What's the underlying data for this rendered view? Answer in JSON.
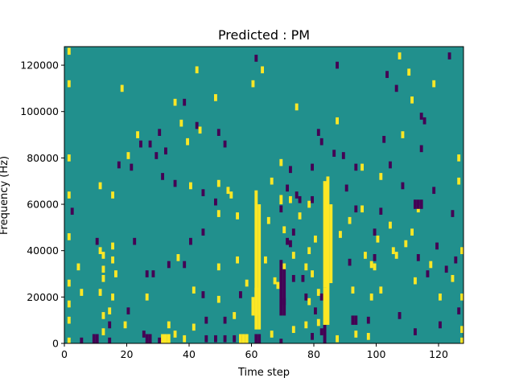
{
  "chart_data": {
    "type": "heatmap",
    "title": "Predicted : PM",
    "xlabel": "Time step",
    "ylabel": "Frequency (Hz)",
    "xlim": [
      0,
      128
    ],
    "ylim": [
      0,
      128000
    ],
    "x_ticks": [
      0,
      20,
      40,
      60,
      80,
      100,
      120
    ],
    "y_ticks": [
      0,
      20000,
      40000,
      60000,
      80000,
      100000,
      120000
    ],
    "n_time_steps": 128,
    "n_freq_bins": 128,
    "grid": false,
    "legend": "none",
    "colormap": {
      "background_value": 0,
      "background_color": "#21908d",
      "high_value": 1,
      "high_color": "#fde725",
      "low_value": -1,
      "low_color": "#440154"
    },
    "cells": [
      [
        1,
        126000,
        1
      ],
      [
        1,
        112000,
        1
      ],
      [
        1,
        80000,
        1
      ],
      [
        1,
        64000,
        1
      ],
      [
        1,
        46000,
        1
      ],
      [
        1,
        26000,
        1
      ],
      [
        1,
        17000,
        1
      ],
      [
        1,
        10000,
        1
      ],
      [
        1,
        1000,
        1
      ],
      [
        2,
        57000,
        -1
      ],
      [
        4,
        33000,
        1
      ],
      [
        5,
        22000,
        1
      ],
      [
        5,
        1000,
        -1
      ],
      [
        10,
        44000,
        -1
      ],
      [
        11,
        68000,
        1
      ],
      [
        11,
        40000,
        1
      ],
      [
        11,
        22000,
        1
      ],
      [
        12,
        38000,
        1
      ],
      [
        12,
        32000,
        1
      ],
      [
        12,
        28000,
        1
      ],
      [
        12,
        12000,
        1
      ],
      [
        12,
        5000,
        1
      ],
      [
        14,
        14000,
        1
      ],
      [
        14,
        8000,
        -1
      ],
      [
        14,
        1000,
        -1
      ],
      [
        15,
        64000,
        1
      ],
      [
        15,
        42000,
        1
      ],
      [
        15,
        36000,
        1
      ],
      [
        15,
        20000,
        1
      ],
      [
        16,
        30000,
        1
      ],
      [
        18,
        110000,
        1
      ],
      [
        17,
        77000,
        -1
      ],
      [
        19,
        8000,
        1
      ],
      [
        20,
        81000,
        1
      ],
      [
        20,
        14000,
        -1
      ],
      [
        21,
        76000,
        -1
      ],
      [
        22,
        44000,
        -1
      ],
      [
        23,
        90000,
        1
      ],
      [
        24,
        86000,
        -1
      ],
      [
        25,
        4000,
        -1
      ],
      [
        26,
        20000,
        1
      ],
      [
        26,
        30000,
        -1
      ],
      [
        27,
        86000,
        -1
      ],
      [
        28,
        30000,
        -1
      ],
      [
        29,
        81000,
        -1
      ],
      [
        30,
        91000,
        -1
      ],
      [
        30,
        1000,
        -1
      ],
      [
        31,
        72000,
        -1
      ],
      [
        32,
        83000,
        -1
      ],
      [
        33,
        34000,
        -1
      ],
      [
        33,
        8000,
        1
      ],
      [
        35,
        104000,
        1
      ],
      [
        35,
        69000,
        -1
      ],
      [
        35,
        4000,
        1
      ],
      [
        36,
        37000,
        1
      ],
      [
        37,
        95000,
        1
      ],
      [
        38,
        104000,
        -1
      ],
      [
        38,
        34000,
        -1
      ],
      [
        38,
        2000,
        1
      ],
      [
        39,
        87000,
        1
      ],
      [
        40,
        68000,
        1
      ],
      [
        40,
        44000,
        -1
      ],
      [
        41,
        23000,
        1
      ],
      [
        41,
        7000,
        1
      ],
      [
        42,
        118000,
        1
      ],
      [
        42,
        94000,
        -1
      ],
      [
        43,
        92000,
        1
      ],
      [
        44,
        65000,
        -1
      ],
      [
        44,
        48000,
        -1
      ],
      [
        44,
        21000,
        -1
      ],
      [
        45,
        10000,
        -1
      ],
      [
        45,
        2000,
        -1
      ],
      [
        48,
        106000,
        1
      ],
      [
        48,
        61000,
        -1
      ],
      [
        48,
        2000,
        -1
      ],
      [
        49,
        91000,
        -1
      ],
      [
        49,
        69000,
        1
      ],
      [
        49,
        56000,
        1
      ],
      [
        49,
        33000,
        1
      ],
      [
        49,
        19000,
        1
      ],
      [
        51,
        86000,
        -1
      ],
      [
        51,
        10000,
        -1
      ],
      [
        51,
        2000,
        -1
      ],
      [
        52,
        66000,
        1
      ],
      [
        53,
        64000,
        1
      ],
      [
        54,
        12000,
        1
      ],
      [
        54,
        2000,
        -1
      ],
      [
        55,
        55000,
        1
      ],
      [
        55,
        36000,
        1
      ],
      [
        56,
        21000,
        -1
      ],
      [
        56,
        2000,
        -1
      ],
      [
        58,
        26000,
        1
      ],
      [
        60,
        112000,
        1
      ],
      [
        61,
        123000,
        -1
      ],
      [
        63,
        118000,
        1
      ],
      [
        64,
        36000,
        1
      ],
      [
        65,
        53000,
        1
      ],
      [
        66,
        70000,
        1
      ],
      [
        66,
        4000,
        1
      ],
      [
        67,
        27000,
        1
      ],
      [
        68,
        25000,
        1
      ],
      [
        69,
        78000,
        1
      ],
      [
        69,
        58000,
        -1
      ],
      [
        70,
        49000,
        1
      ],
      [
        70,
        33000,
        1
      ],
      [
        70,
        18000,
        -1
      ],
      [
        71,
        67000,
        -1
      ],
      [
        71,
        44000,
        -1
      ],
      [
        72,
        75000,
        -1
      ],
      [
        72,
        62000,
        1
      ],
      [
        72,
        43000,
        -1
      ],
      [
        73,
        48000,
        -1
      ],
      [
        73,
        38000,
        1
      ],
      [
        73,
        28000,
        -1
      ],
      [
        73,
        6000,
        1
      ],
      [
        74,
        102000,
        1
      ],
      [
        74,
        64000,
        -1
      ],
      [
        75,
        62000,
        -1
      ],
      [
        75,
        55000,
        1
      ],
      [
        76,
        28000,
        -1
      ],
      [
        77,
        33000,
        1
      ],
      [
        77,
        20000,
        -1
      ],
      [
        77,
        8000,
        1
      ],
      [
        78,
        60000,
        1
      ],
      [
        78,
        40000,
        1
      ],
      [
        78,
        18000,
        1
      ],
      [
        79,
        76000,
        -1
      ],
      [
        79,
        62000,
        -1
      ],
      [
        79,
        30000,
        1
      ],
      [
        79,
        3000,
        -1
      ],
      [
        80,
        45000,
        1
      ],
      [
        80,
        14000,
        -1
      ],
      [
        81,
        91000,
        -1
      ],
      [
        81,
        22000,
        1
      ],
      [
        81,
        9000,
        1
      ],
      [
        82,
        87000,
        -1
      ],
      [
        82,
        20000,
        -1
      ],
      [
        82,
        5000,
        -1
      ],
      [
        86,
        82000,
        -1
      ],
      [
        87,
        120000,
        -1
      ],
      [
        87,
        96000,
        1
      ],
      [
        87,
        2000,
        1
      ],
      [
        88,
        47000,
        1
      ],
      [
        89,
        81000,
        -1
      ],
      [
        90,
        67000,
        -1
      ],
      [
        91,
        53000,
        1
      ],
      [
        91,
        35000,
        -1
      ],
      [
        92,
        23000,
        1
      ],
      [
        93,
        58000,
        -1
      ],
      [
        93,
        76000,
        -1
      ],
      [
        93,
        4000,
        1
      ],
      [
        95,
        76000,
        1
      ],
      [
        95,
        58000,
        1
      ],
      [
        96,
        38000,
        1
      ],
      [
        97,
        10000,
        -1
      ],
      [
        97,
        3000,
        1
      ],
      [
        98,
        34000,
        1
      ],
      [
        98,
        20000,
        1
      ],
      [
        99,
        48000,
        -1
      ],
      [
        99,
        37000,
        -1
      ],
      [
        99,
        33000,
        1
      ],
      [
        100,
        45000,
        1
      ],
      [
        101,
        57000,
        -1
      ],
      [
        101,
        72000,
        1
      ],
      [
        101,
        23000,
        1
      ],
      [
        102,
        88000,
        -1
      ],
      [
        103,
        116000,
        -1
      ],
      [
        104,
        77000,
        -1
      ],
      [
        104,
        51000,
        1
      ],
      [
        105,
        40000,
        1
      ],
      [
        106,
        110000,
        -1
      ],
      [
        106,
        38000,
        1
      ],
      [
        107,
        124000,
        1
      ],
      [
        107,
        12000,
        -1
      ],
      [
        108,
        90000,
        1
      ],
      [
        108,
        68000,
        -1
      ],
      [
        109,
        43000,
        1
      ],
      [
        110,
        117000,
        1
      ],
      [
        111,
        105000,
        1
      ],
      [
        111,
        48000,
        1
      ],
      [
        112,
        27000,
        1
      ],
      [
        112,
        5000,
        -1
      ],
      [
        113,
        58000,
        1
      ],
      [
        113,
        37000,
        -1
      ],
      [
        114,
        84000,
        -1
      ],
      [
        114,
        98000,
        -1
      ],
      [
        115,
        96000,
        -1
      ],
      [
        116,
        30000,
        -1
      ],
      [
        117,
        34000,
        1
      ],
      [
        118,
        112000,
        1
      ],
      [
        118,
        66000,
        -1
      ],
      [
        119,
        42000,
        -1
      ],
      [
        120,
        20000,
        1
      ],
      [
        120,
        8000,
        -1
      ],
      [
        122,
        32000,
        -1
      ],
      [
        123,
        124000,
        -1
      ],
      [
        124,
        56000,
        -1
      ],
      [
        124,
        28000,
        1
      ],
      [
        125,
        36000,
        -1
      ],
      [
        126,
        80000,
        1
      ],
      [
        126,
        70000,
        1
      ],
      [
        126,
        14000,
        -1
      ],
      [
        127,
        40000,
        1
      ],
      [
        127,
        20000,
        1
      ],
      [
        127,
        6000,
        1
      ],
      [
        127,
        1000,
        1
      ]
    ],
    "runs": [
      [
        61,
        0,
        4000,
        -1
      ],
      [
        61,
        6000,
        66000,
        1
      ],
      [
        62,
        0,
        4000,
        -1
      ],
      [
        62,
        6000,
        60000,
        1
      ],
      [
        69,
        0,
        2000,
        -1
      ],
      [
        69,
        12000,
        36000,
        -1
      ],
      [
        69,
        60000,
        64000,
        1
      ],
      [
        70,
        12000,
        32000,
        -1
      ],
      [
        83,
        0,
        8000,
        -1
      ],
      [
        83,
        8000,
        24000,
        1
      ],
      [
        83,
        24000,
        70000,
        1
      ],
      [
        84,
        8000,
        72000,
        1
      ],
      [
        85,
        26000,
        60000,
        1
      ],
      [
        61,
        12000,
        24000,
        1
      ],
      [
        60,
        12000,
        20000,
        1
      ],
      [
        56,
        0,
        4000,
        1
      ],
      [
        57,
        0,
        4000,
        1
      ],
      [
        58,
        0,
        4000,
        1
      ],
      [
        31,
        0,
        4000,
        1
      ],
      [
        32,
        0,
        4000,
        1
      ],
      [
        33,
        0,
        4000,
        1
      ],
      [
        9,
        0,
        4000,
        -1
      ],
      [
        10,
        0,
        4000,
        -1
      ],
      [
        26,
        0,
        4000,
        -1
      ],
      [
        27,
        0,
        4000,
        -1
      ],
      [
        112,
        58000,
        62000,
        -1
      ],
      [
        113,
        58000,
        62000,
        -1
      ],
      [
        114,
        58000,
        62000,
        -1
      ],
      [
        92,
        8000,
        12000,
        -1
      ],
      [
        93,
        8000,
        12000,
        -1
      ]
    ]
  }
}
